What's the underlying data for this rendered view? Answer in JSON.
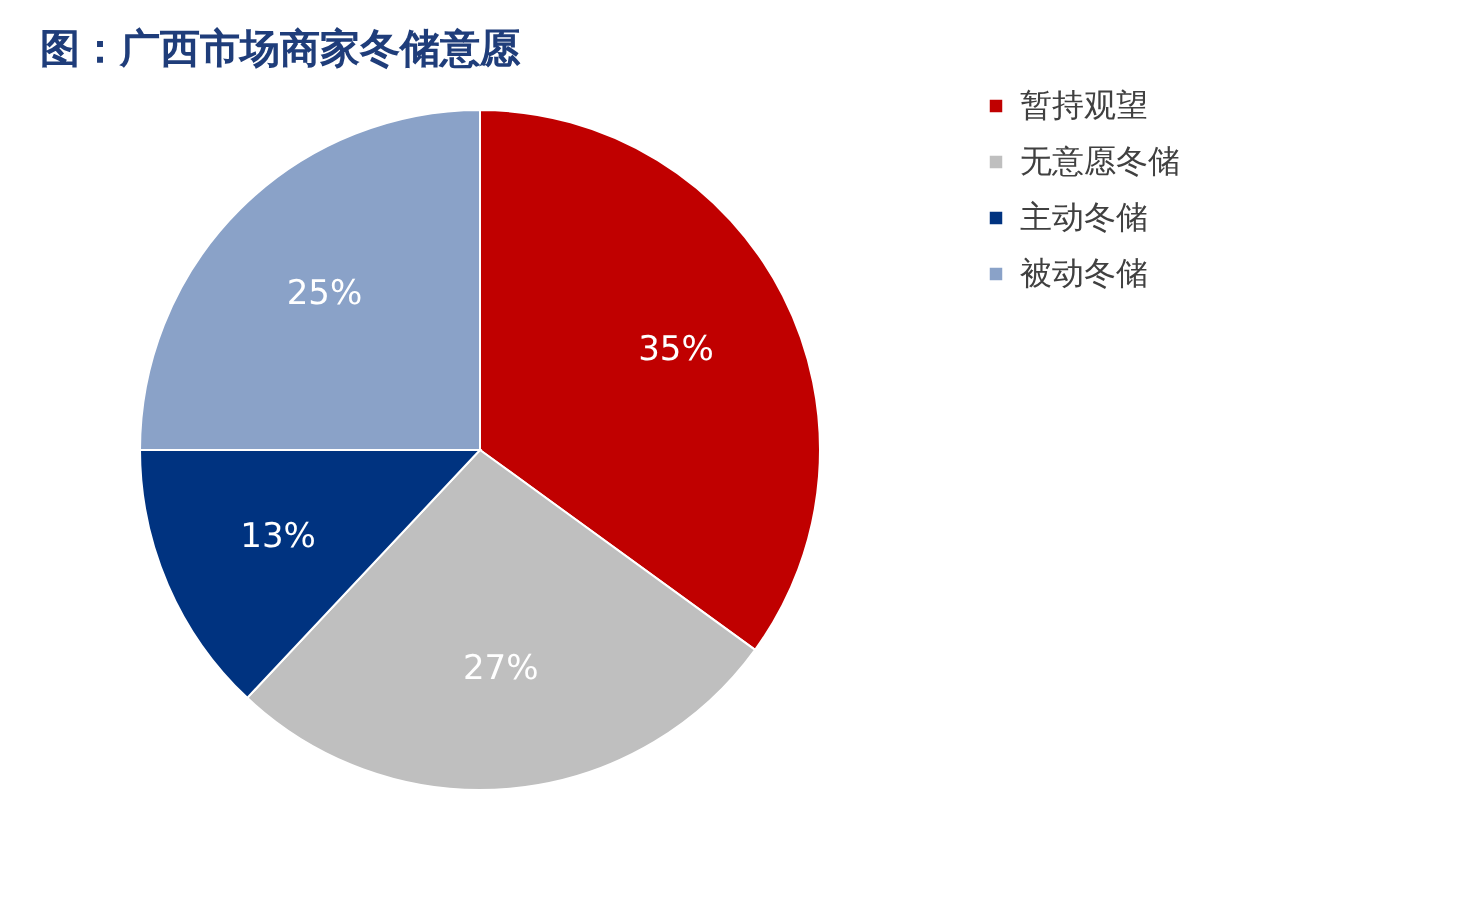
{
  "chart_data": {
    "type": "pie",
    "title": "图：广西市场商家冬储意愿",
    "categories": [
      "暂持观望",
      "无意愿冬储",
      "主动冬储",
      "被动冬储"
    ],
    "values": [
      35,
      27,
      13,
      25
    ],
    "colors": [
      "#c00000",
      "#bfbfbf",
      "#003380",
      "#8aa2c8"
    ],
    "value_labels": [
      "35%",
      "27%",
      "13%",
      "25%"
    ],
    "legend": "right"
  }
}
